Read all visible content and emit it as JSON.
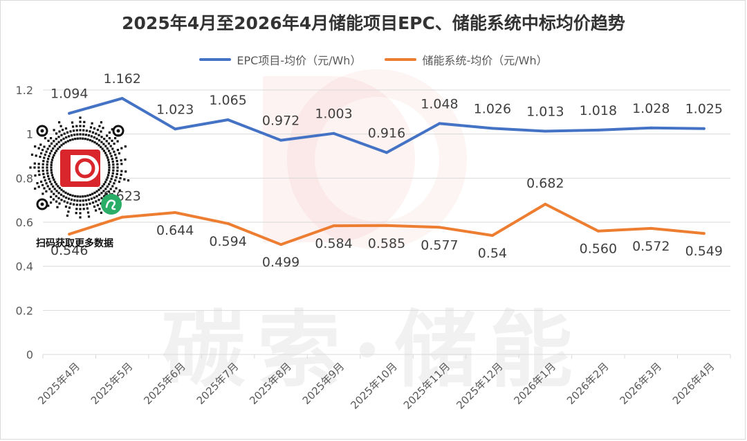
{
  "chart_data": {
    "type": "line",
    "title": "2025年4月至2026年4月储能项目EPC、储能系统中标均价趋势",
    "categories": [
      "2025年4月",
      "2025年5月",
      "2025年6月",
      "2025年7月",
      "2025年8月",
      "2025年9月",
      "2025年10月",
      "2025年11月",
      "2025年12月",
      "2026年1月",
      "2026年2月",
      "2026年3月",
      "2026年4月"
    ],
    "series": [
      {
        "name": "EPC项目-均价（元/Wh）",
        "color": "#4472c4",
        "values": [
          1.094,
          1.162,
          1.023,
          1.065,
          0.972,
          1.003,
          0.916,
          1.048,
          1.026,
          1.013,
          1.018,
          1.028,
          1.025
        ],
        "labels": [
          "1.094",
          "1.162",
          "1.023",
          "1.065",
          "0.972",
          "1.003",
          "0.916",
          "1.048",
          "1.026",
          "1.013",
          "1.018",
          "1.028",
          "1.025"
        ]
      },
      {
        "name": "储能系统-均价（元/Wh）",
        "color": "#ed7d31",
        "values": [
          0.546,
          0.623,
          0.644,
          0.594,
          0.499,
          0.584,
          0.585,
          0.577,
          0.54,
          0.682,
          0.56,
          0.572,
          0.549
        ],
        "labels": [
          "0.546",
          "0.623",
          "0.644",
          "0.594",
          "0.499",
          "0.584",
          "0.585",
          "0.577",
          "0.54",
          "0.682",
          "0.560",
          "0.572",
          "0.549"
        ]
      }
    ],
    "yticks": [
      "0",
      "0.2",
      "0.4",
      "0.6",
      "0.8",
      "1",
      "1.2"
    ],
    "ylim": [
      0,
      1.2
    ],
    "grid": true,
    "legend_position": "top"
  },
  "watermark": {
    "text": "碳索·储能"
  },
  "qr": {
    "caption": "扫码获取更多数据"
  },
  "colors": {
    "grid": "#d9d9d9",
    "axis_text": "#595959",
    "label_text": "#404040",
    "brand_red": "#d9262c"
  }
}
